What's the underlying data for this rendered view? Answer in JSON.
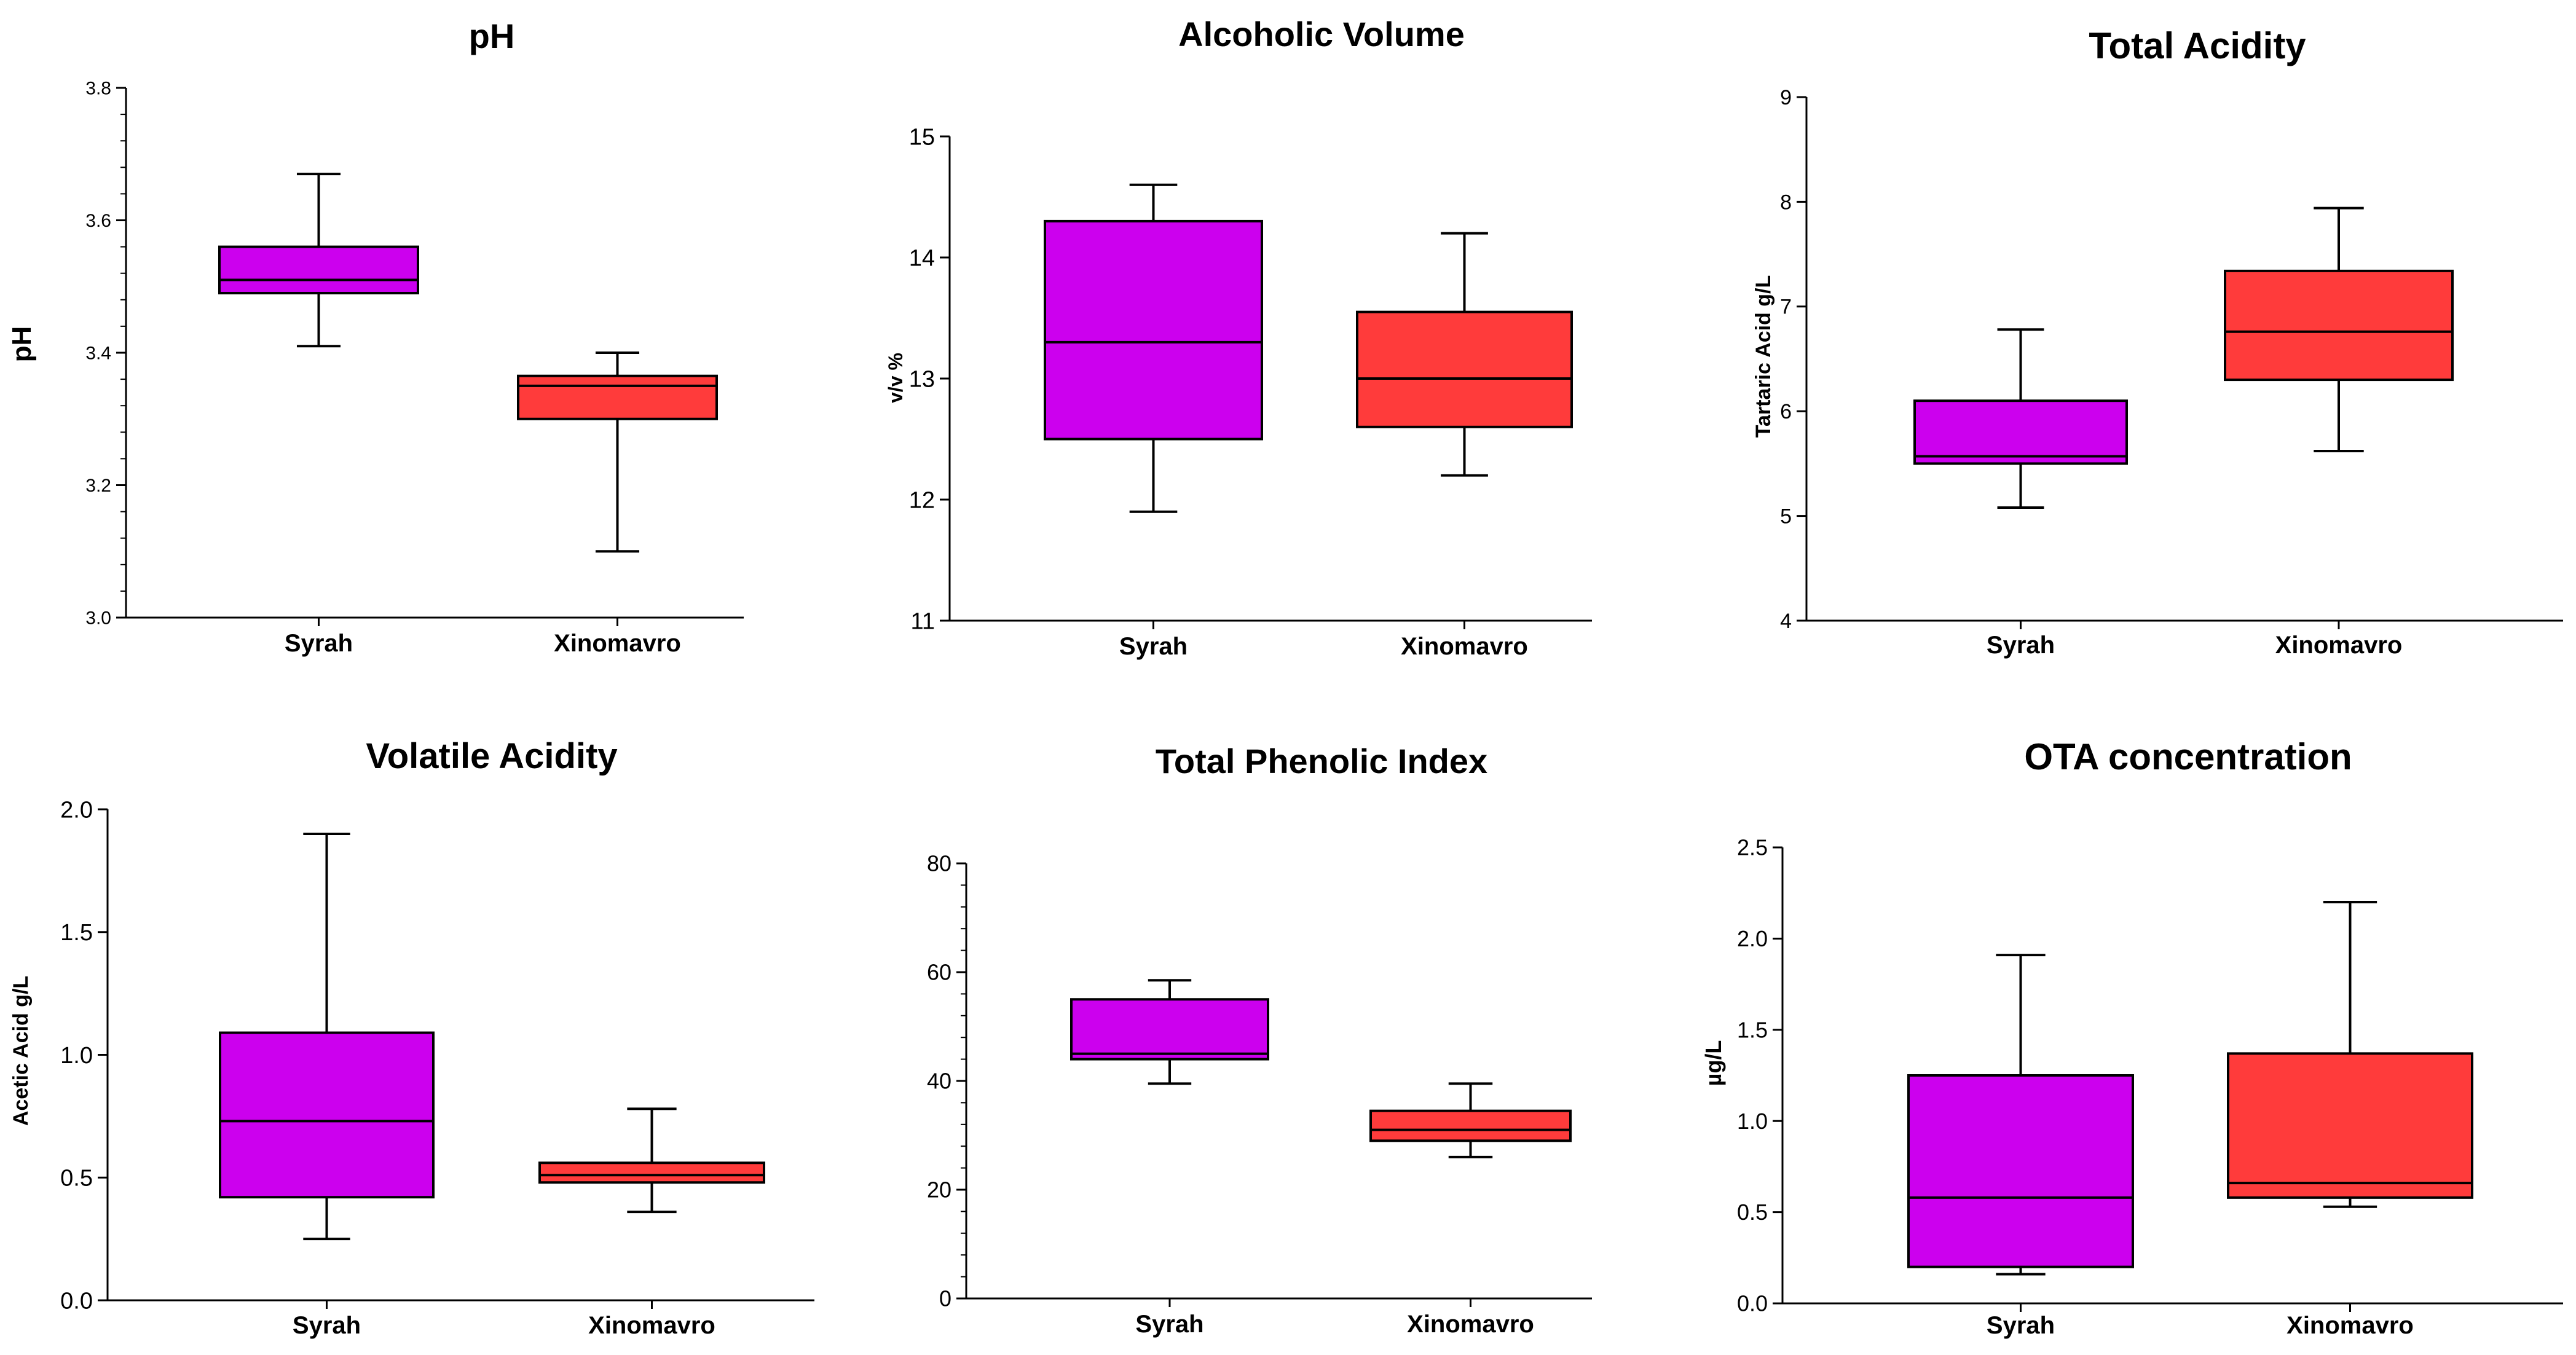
{
  "colors": {
    "syrah": "#CC00EE",
    "xinomavro": "#FF3B3B",
    "axis": "#000000"
  },
  "chart_data": [
    {
      "type": "box",
      "title": "pH",
      "ylabel": "pH",
      "ylim": [
        3.0,
        3.8
      ],
      "yticks": [
        "3.0",
        "3.2",
        "3.4",
        "3.6",
        "3.8"
      ],
      "minor_per_major": 5,
      "categories": [
        "Syrah",
        "Xinomavro"
      ],
      "boxes": [
        {
          "name": "Syrah",
          "min": 3.41,
          "q1": 3.49,
          "median": 3.51,
          "q3": 3.56,
          "max": 3.67
        },
        {
          "name": "Xinomavro",
          "min": 3.1,
          "q1": 3.3,
          "median": 3.35,
          "q3": 3.365,
          "max": 3.4
        }
      ]
    },
    {
      "type": "box",
      "title": "Alcoholic Volume",
      "ylabel": "v/v %",
      "ylim": [
        11,
        15
      ],
      "yticks": [
        "11",
        "12",
        "13",
        "14",
        "15"
      ],
      "minor_per_major": 0,
      "categories": [
        "Syrah",
        "Xinomavro"
      ],
      "boxes": [
        {
          "name": "Syrah",
          "min": 11.9,
          "q1": 12.5,
          "median": 13.3,
          "q3": 14.3,
          "max": 14.6
        },
        {
          "name": "Xinomavro",
          "min": 12.2,
          "q1": 12.6,
          "median": 13.0,
          "q3": 13.55,
          "max": 14.2
        }
      ]
    },
    {
      "type": "box",
      "title": "Total Acidity",
      "ylabel": "Tartaric Acid g/L",
      "ylim": [
        4,
        9
      ],
      "yticks": [
        "4",
        "5",
        "6",
        "7",
        "8",
        "9"
      ],
      "minor_per_major": 0,
      "categories": [
        "Syrah",
        "Xinomavro"
      ],
      "boxes": [
        {
          "name": "Syrah",
          "min": 5.08,
          "q1": 5.5,
          "median": 5.57,
          "q3": 6.1,
          "max": 6.78
        },
        {
          "name": "Xinomavro",
          "min": 5.62,
          "q1": 6.3,
          "median": 6.76,
          "q3": 7.34,
          "max": 7.94
        }
      ]
    },
    {
      "type": "box",
      "title": "Volatile Acidity",
      "ylabel": "Acetic Acid g/L",
      "ylim": [
        0.0,
        2.0
      ],
      "yticks": [
        "0.0",
        "0.5",
        "1.0",
        "1.5",
        "2.0"
      ],
      "minor_per_major": 0,
      "categories": [
        "Syrah",
        "Xinomavro"
      ],
      "boxes": [
        {
          "name": "Syrah",
          "min": 0.25,
          "q1": 0.42,
          "median": 0.73,
          "q3": 1.09,
          "max": 1.9
        },
        {
          "name": "Xinomavro",
          "min": 0.36,
          "q1": 0.48,
          "median": 0.51,
          "q3": 0.56,
          "max": 0.78
        }
      ]
    },
    {
      "type": "box",
      "title": "Total Phenolic Index",
      "ylabel": "",
      "ylim": [
        0,
        80
      ],
      "yticks": [
        "0",
        "20",
        "40",
        "60",
        "80"
      ],
      "minor_per_major": 5,
      "categories": [
        "Syrah",
        "Xinomavro"
      ],
      "boxes": [
        {
          "name": "Syrah",
          "min": 39.5,
          "q1": 44,
          "median": 45,
          "q3": 55,
          "max": 58.5
        },
        {
          "name": "Xinomavro",
          "min": 26,
          "q1": 29,
          "median": 31,
          "q3": 34.5,
          "max": 39.5
        }
      ]
    },
    {
      "type": "box",
      "title": "OTA concentration",
      "ylabel": "µg/L",
      "ylim": [
        0.0,
        2.5
      ],
      "yticks": [
        "0.0",
        "0.5",
        "1.0",
        "1.5",
        "2.0",
        "2.5"
      ],
      "minor_per_major": 0,
      "categories": [
        "Syrah",
        "Xinomavro"
      ],
      "boxes": [
        {
          "name": "Syrah",
          "min": 0.16,
          "q1": 0.2,
          "median": 0.58,
          "q3": 1.25,
          "max": 1.91
        },
        {
          "name": "Xinomavro",
          "min": 0.53,
          "q1": 0.58,
          "median": 0.66,
          "q3": 1.37,
          "max": 2.2
        }
      ]
    }
  ]
}
